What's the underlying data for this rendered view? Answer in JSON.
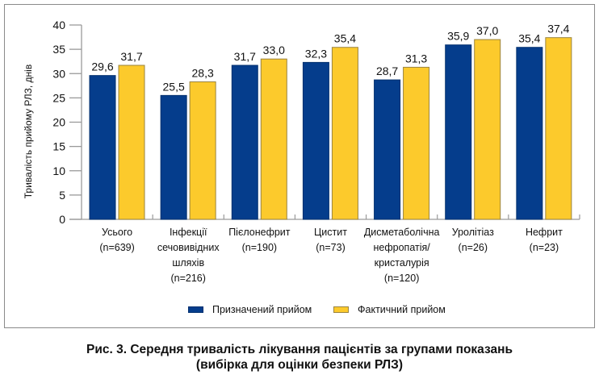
{
  "chart_data": {
    "type": "bar",
    "title": "Рис. 3. Середня тривалість лікування пацієнтів за групами показань",
    "subtitle": "(вибірка для оцінки безпеки РЛЗ)",
    "xlabel": "",
    "ylabel": "Тривалість прийому РЛЗ, днів",
    "ylim": [
      0,
      40
    ],
    "yticks": [
      0,
      5,
      10,
      15,
      20,
      25,
      30,
      35,
      40
    ],
    "grid": false,
    "legend_position": "bottom",
    "categories": [
      [
        "Усього",
        "(n=639)"
      ],
      [
        "Інфекції",
        "сечовивідних",
        "шляхів",
        "(n=216)"
      ],
      [
        "Пієлонефрит",
        "(n=190)"
      ],
      [
        "Цистит",
        "(n=73)"
      ],
      [
        "Дисметаболічна",
        "нефропатія/",
        "кристалурія",
        "(n=120)"
      ],
      [
        "Уролітіаз",
        "(n=26)"
      ],
      [
        "Нефрит",
        "(n=23)"
      ]
    ],
    "series": [
      {
        "name": "Призначений прийом",
        "color": "#053d8c",
        "values": [
          29.6,
          25.5,
          31.7,
          32.3,
          28.7,
          35.9,
          35.4
        ],
        "labels": [
          "29,6",
          "25,5",
          "31,7",
          "32,3",
          "28,7",
          "35,9",
          "35,4"
        ]
      },
      {
        "name": "Фактичний прийом",
        "color": "#fcca2c",
        "values": [
          31.7,
          28.3,
          33.0,
          35.4,
          31.3,
          37.0,
          37.4
        ],
        "labels": [
          "31,7",
          "28,3",
          "33,0",
          "35,4",
          "31,3",
          "37,0",
          "37,4"
        ]
      }
    ]
  },
  "caption": {
    "line1": "Рис. 3. Середня тривалість лікування пацієнтів за групами показань",
    "line2": "(вибірка для оцінки безпеки РЛЗ)"
  }
}
